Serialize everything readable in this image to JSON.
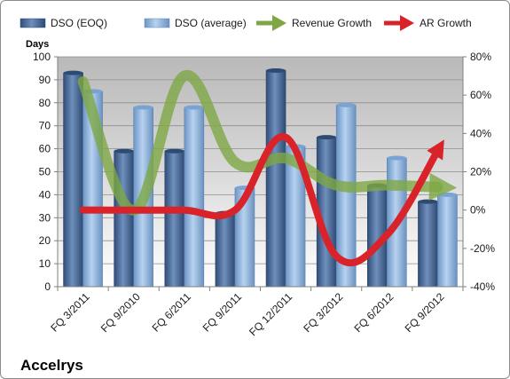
{
  "chart_data": {
    "type": "bar",
    "title": "Accelrys",
    "ylabel": "Days",
    "categories": [
      "FQ 3/2011",
      "FQ 9/2010",
      "FQ 6/2011",
      "FQ 9/2011",
      "FQ 12/2011",
      "FQ 3/2012",
      "FQ 6/2012",
      "FQ 9/2012"
    ],
    "ylim": [
      0,
      100
    ],
    "y_ticks": [
      "0",
      "10",
      "20",
      "30",
      "40",
      "50",
      "60",
      "70",
      "80",
      "90",
      "100"
    ],
    "y2lim": [
      -40,
      80
    ],
    "y2_ticks": [
      "-40%",
      "-20%",
      "0%",
      "20%",
      "40%",
      "60%",
      "80%"
    ],
    "legend_position": "top",
    "series": [
      {
        "name": "DSO (EOQ)",
        "type": "bar",
        "axis": "left",
        "color": "#4a6a98",
        "values": [
          93,
          59,
          59,
          32,
          94,
          65,
          44,
          37
        ]
      },
      {
        "name": "DSO (average)",
        "type": "bar",
        "axis": "left",
        "color": "#7fa7d4",
        "values": [
          85,
          78,
          78,
          43,
          61,
          79,
          56,
          40
        ]
      },
      {
        "name": "Revenue Growth",
        "type": "line",
        "axis": "right",
        "color": "#7ea744",
        "values": [
          67,
          0,
          70,
          25,
          27,
          13,
          13,
          12
        ]
      },
      {
        "name": "AR Growth",
        "type": "line",
        "axis": "right",
        "color": "#d9232b",
        "values": [
          0,
          0,
          0,
          0,
          38,
          -24,
          -13,
          31
        ]
      }
    ]
  }
}
